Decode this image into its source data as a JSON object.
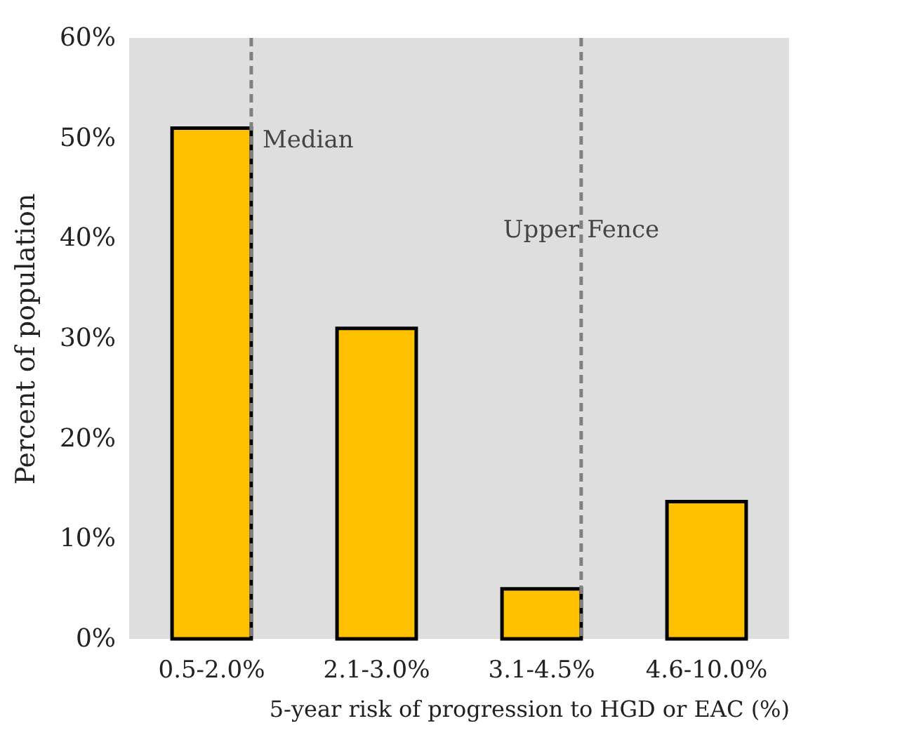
{
  "chart_data": {
    "type": "bar",
    "xlabel": "5-year risk of progression to HGD or EAC (%)",
    "ylabel": "Percent of population",
    "categories": [
      "0.5-2.0%",
      "2.1-3.0%",
      "3.1-4.5%",
      "4.6-10.0%"
    ],
    "values": [
      51,
      31,
      5,
      13.7
    ],
    "color": "#ffc000",
    "ylim": [
      0,
      60
    ],
    "yticks": [
      {
        "value": 0,
        "label": "0%"
      },
      {
        "value": 10,
        "label": "10%"
      },
      {
        "value": 20,
        "label": "20%"
      },
      {
        "value": 30,
        "label": "30%"
      },
      {
        "value": 40,
        "label": "40%"
      },
      {
        "value": 50,
        "label": "50%"
      },
      {
        "value": 60,
        "label": "60%"
      }
    ],
    "grid": false,
    "ref_lines": [
      {
        "axis": "x",
        "value": "0.5-2.0%",
        "label": "Median",
        "color": "#808080",
        "line_style": "dashed"
      },
      {
        "axis": "x",
        "value": "3.1-4.5%",
        "label": "Upper Fence",
        "color": "#808080",
        "line_style": "dashed"
      }
    ]
  }
}
